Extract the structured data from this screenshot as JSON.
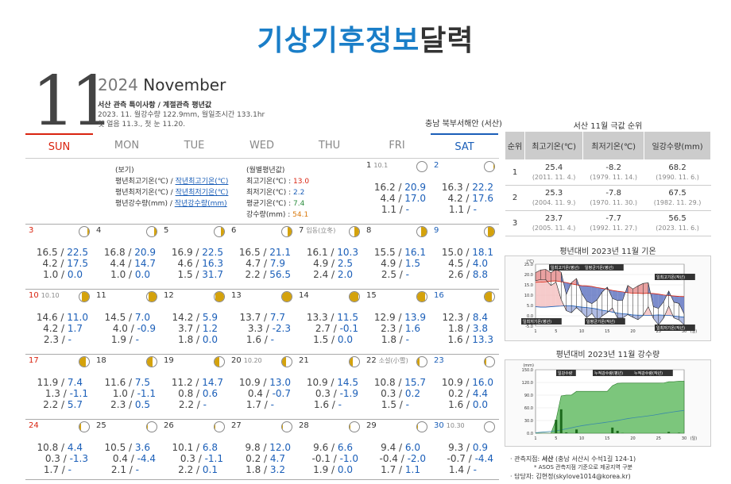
{
  "title_blue": "기상기후정보",
  "title_dark": "달력",
  "month_num": "11",
  "year": "2024",
  "month_name": "November",
  "info1": "서산 관측 특이사항 / 계절관측 평년값",
  "info2": "2023. 11. 월강수량 122.9mm, 월일조시간 133.1hr",
  "info3": "첫 얼음 11.3., 첫 눈 11.20.",
  "region": "충남 북부서해안 (서산)",
  "weekdays": [
    "SUN",
    "MON",
    "TUE",
    "WED",
    "THU",
    "FRI",
    "SAT"
  ],
  "legend": {
    "head": "(보기)",
    "l1a": "평년최고기온(℃) / ",
    "l1b": "작년최고기온(℃)",
    "l2a": "평년최저기온(℃) / ",
    "l2b": "작년최저기온(℃)",
    "l3a": "평년강수량(mm) / ",
    "l3b": "작년강수량(mm)"
  },
  "monthly": {
    "head": "(월별평년값)",
    "r1": "최고기온(℃) : ",
    "v1": "13.0",
    "r2": "최저기온(℃) : ",
    "v2": "2.2",
    "r3": "평균기온(℃) : ",
    "v3": "7.4",
    "r4": "강수량(mm) : ",
    "v4": "54.1"
  },
  "days": [
    {
      "d": "1",
      "note": "10.1",
      "phase": 0.02,
      "hi": "16.2",
      "hi2": "20.9",
      "lo": "4.4",
      "lo2": "17.0",
      "pr": "1.1",
      "pr2": "-"
    },
    {
      "d": "2",
      "note": "",
      "phase": 0.04,
      "hi": "16.3",
      "hi2": "22.2",
      "lo": "4.2",
      "lo2": "17.6",
      "pr": "1.1",
      "pr2": "-"
    },
    {
      "d": "3",
      "note": "",
      "phase": 0.08,
      "hi": "16.5",
      "hi2": "22.5",
      "lo": "4.2",
      "lo2": "17.5",
      "pr": "1.0",
      "pr2": "0.0"
    },
    {
      "d": "4",
      "note": "",
      "phase": 0.12,
      "hi": "16.8",
      "hi2": "20.9",
      "lo": "4.4",
      "lo2": "14.7",
      "pr": "1.0",
      "pr2": "0.0"
    },
    {
      "d": "5",
      "note": "",
      "phase": 0.16,
      "hi": "16.9",
      "hi2": "22.5",
      "lo": "4.6",
      "lo2": "16.3",
      "pr": "1.5",
      "pr2": "31.7"
    },
    {
      "d": "6",
      "note": "",
      "phase": 0.2,
      "hi": "16.5",
      "hi2": "21.1",
      "lo": "4.7",
      "lo2": "7.9",
      "pr": "2.2",
      "pr2": "56.5"
    },
    {
      "d": "7",
      "note": "입동(立冬)",
      "phase": 0.24,
      "hi": "16.1",
      "hi2": "10.3",
      "lo": "4.9",
      "lo2": "2.5",
      "pr": "2.4",
      "pr2": "2.0"
    },
    {
      "d": "8",
      "note": "",
      "phase": 0.28,
      "hi": "15.5",
      "hi2": "16.1",
      "lo": "4.9",
      "lo2": "1.5",
      "pr": "2.5",
      "pr2": "-"
    },
    {
      "d": "9",
      "note": "",
      "phase": 0.32,
      "hi": "15.0",
      "hi2": "18.1",
      "lo": "4.5",
      "lo2": "4.0",
      "pr": "2.6",
      "pr2": "8.8"
    },
    {
      "d": "10",
      "note": "10.10",
      "phase": 0.36,
      "hi": "14.6",
      "hi2": "11.0",
      "lo": "4.2",
      "lo2": "1.7",
      "pr": "2.3",
      "pr2": "-"
    },
    {
      "d": "11",
      "note": "",
      "phase": 0.4,
      "hi": "14.5",
      "hi2": "7.0",
      "lo": "4.0",
      "lo2": "-0.9",
      "pr": "1.9",
      "pr2": "-"
    },
    {
      "d": "12",
      "note": "",
      "phase": 0.44,
      "hi": "14.2",
      "hi2": "5.9",
      "lo": "3.7",
      "lo2": "1.2",
      "pr": "1.8",
      "pr2": "0.0"
    },
    {
      "d": "13",
      "note": "",
      "phase": 0.5,
      "hi": "13.7",
      "hi2": "7.7",
      "lo": "3.3",
      "lo2": "-2.3",
      "pr": "1.6",
      "pr2": "-"
    },
    {
      "d": "14",
      "note": "",
      "phase": 0.54,
      "hi": "13.3",
      "hi2": "11.5",
      "lo": "2.7",
      "lo2": "-0.1",
      "pr": "1.5",
      "pr2": "0.0"
    },
    {
      "d": "15",
      "note": "",
      "phase": 0.58,
      "hi": "12.9",
      "hi2": "13.9",
      "lo": "2.3",
      "lo2": "1.6",
      "pr": "1.8",
      "pr2": "-"
    },
    {
      "d": "16",
      "note": "",
      "phase": 0.62,
      "hi": "12.3",
      "hi2": "8.4",
      "lo": "1.8",
      "lo2": "3.8",
      "pr": "1.6",
      "pr2": "13.3"
    },
    {
      "d": "17",
      "note": "",
      "phase": 0.66,
      "hi": "11.9",
      "hi2": "7.4",
      "lo": "1.3",
      "lo2": "-1.1",
      "pr": "2.2",
      "pr2": "5.7"
    },
    {
      "d": "18",
      "note": "",
      "phase": 0.7,
      "hi": "11.6",
      "hi2": "7.5",
      "lo": "1.0",
      "lo2": "-1.1",
      "pr": "2.3",
      "pr2": "0.5"
    },
    {
      "d": "19",
      "note": "",
      "phase": 0.74,
      "hi": "11.2",
      "hi2": "14.7",
      "lo": "0.8",
      "lo2": "0.6",
      "pr": "2.2",
      "pr2": "-"
    },
    {
      "d": "20",
      "note": "10.20",
      "phase": 0.78,
      "hi": "10.9",
      "hi2": "13.0",
      "lo": "0.4",
      "lo2": "-0.7",
      "pr": "1.7",
      "pr2": "-"
    },
    {
      "d": "21",
      "note": "",
      "phase": 0.82,
      "hi": "10.9",
      "hi2": "14.5",
      "lo": "0.3",
      "lo2": "-1.9",
      "pr": "1.6",
      "pr2": "-"
    },
    {
      "d": "22",
      "note": "소설(小雪)",
      "phase": 0.86,
      "hi": "10.8",
      "hi2": "15.7",
      "lo": "0.3",
      "lo2": "0.2",
      "pr": "1.5",
      "pr2": "-"
    },
    {
      "d": "23",
      "note": "",
      "phase": 0.9,
      "hi": "10.9",
      "hi2": "16.0",
      "lo": "0.2",
      "lo2": "4.4",
      "pr": "1.6",
      "pr2": "0.0"
    },
    {
      "d": "24",
      "note": "",
      "phase": 0.93,
      "hi": "10.8",
      "hi2": "4.4",
      "lo": "0.3",
      "lo2": "-1.3",
      "pr": "1.7",
      "pr2": "-"
    },
    {
      "d": "25",
      "note": "",
      "phase": 0.95,
      "hi": "10.5",
      "hi2": "3.6",
      "lo": "0.4",
      "lo2": "-4.4",
      "pr": "2.1",
      "pr2": "-"
    },
    {
      "d": "26",
      "note": "",
      "phase": 0.97,
      "hi": "10.1",
      "hi2": "6.8",
      "lo": "0.3",
      "lo2": "-1.1",
      "pr": "2.2",
      "pr2": "0.1"
    },
    {
      "d": "27",
      "note": "",
      "phase": 0.98,
      "hi": "9.8",
      "hi2": "12.0",
      "lo": "0.2",
      "lo2": "4.7",
      "pr": "1.8",
      "pr2": "3.2"
    },
    {
      "d": "28",
      "note": "",
      "phase": 0.99,
      "hi": "9.6",
      "hi2": "6.6",
      "lo": "-0.1",
      "lo2": "-1.0",
      "pr": "1.9",
      "pr2": "0.0"
    },
    {
      "d": "29",
      "note": "",
      "phase": 0.995,
      "hi": "9.4",
      "hi2": "6.0",
      "lo": "-0.4",
      "lo2": "-2.0",
      "pr": "1.7",
      "pr2": "1.1"
    },
    {
      "d": "30",
      "note": "10.30",
      "phase": 0.0,
      "hi": "9.3",
      "hi2": "0.9",
      "lo": "-0.7",
      "lo2": "-4.4",
      "pr": "1.4",
      "pr2": "-"
    }
  ],
  "rank_title": "서산 11월 극값 순위",
  "rank_head": [
    "순위",
    "최고기온(℃)",
    "최저기온(℃)",
    "일강수량(mm)"
  ],
  "rank": [
    [
      "1",
      "25.4",
      "(2011. 11. 4.)",
      "-8.2",
      "(1979. 11. 14.)",
      "68.2",
      "(1990. 11. 6.)"
    ],
    [
      "2",
      "25.3",
      "(2004. 11. 9.)",
      "-7.8",
      "(1970. 11. 30.)",
      "67.5",
      "(1982. 11. 29.)"
    ],
    [
      "3",
      "23.7",
      "(2005. 11. 4.)",
      "-7.7",
      "(1992. 11. 27.)",
      "56.5",
      "(2023. 11. 6.)"
    ]
  ],
  "chart1_title": "평년대비 2023년 11월 기온",
  "chart2_title": "평년대비 2023년 11월 강수량",
  "chart_data": [
    {
      "type": "line",
      "title": "평년대비 2023년 11월 기온",
      "ylabel": "(℃)",
      "xlabel": "(일)",
      "ylim": [
        -5,
        25
      ],
      "yticks": [
        "25.0",
        "20.0",
        "15.0",
        "10.0",
        "5.0",
        "0.0",
        "-5.0"
      ],
      "xticks": [
        "1",
        "5",
        "10",
        "15",
        "20",
        "25",
        "30"
      ],
      "labels": [
        "일최고기온(평년)",
        "일평균기온(평년)",
        "일최고기온(작년)",
        "일최저기온(평년)",
        "일평균기온(작년)",
        "일최저기온(작년)"
      ],
      "x": [
        1,
        2,
        3,
        4,
        5,
        6,
        7,
        8,
        9,
        10,
        11,
        12,
        13,
        14,
        15,
        16,
        17,
        18,
        19,
        20,
        21,
        22,
        23,
        24,
        25,
        26,
        27,
        28,
        29,
        30
      ],
      "series": [
        {
          "name": "일최고기온(평년)",
          "values": [
            16.2,
            16.3,
            16.5,
            16.8,
            16.9,
            16.5,
            16.1,
            15.5,
            15.0,
            14.6,
            14.5,
            14.2,
            13.7,
            13.3,
            12.9,
            12.3,
            11.9,
            11.6,
            11.2,
            10.9,
            10.9,
            10.8,
            10.9,
            10.8,
            10.5,
            10.1,
            9.8,
            9.6,
            9.4,
            9.3
          ]
        },
        {
          "name": "일최저기온(평년)",
          "values": [
            4.4,
            4.2,
            4.2,
            4.4,
            4.6,
            4.7,
            4.9,
            4.9,
            4.5,
            4.2,
            4.0,
            3.7,
            3.3,
            2.7,
            2.3,
            1.8,
            1.3,
            1.0,
            0.8,
            0.4,
            0.3,
            0.3,
            0.2,
            0.3,
            0.4,
            0.3,
            0.2,
            -0.1,
            -0.4,
            -0.7
          ]
        },
        {
          "name": "일최고기온(작년)",
          "values": [
            20.9,
            22.2,
            22.5,
            20.9,
            22.5,
            21.1,
            10.3,
            16.1,
            18.1,
            11.0,
            7.0,
            5.9,
            7.7,
            11.5,
            13.9,
            8.4,
            7.4,
            7.5,
            14.7,
            13.0,
            14.5,
            15.7,
            16.0,
            4.4,
            3.6,
            6.8,
            12.0,
            6.6,
            6.0,
            0.9
          ]
        },
        {
          "name": "일최저기온(작년)",
          "values": [
            17.0,
            17.6,
            17.5,
            14.7,
            16.3,
            7.9,
            2.5,
            1.5,
            4.0,
            1.7,
            -0.9,
            1.2,
            -2.3,
            -0.1,
            1.6,
            3.8,
            -1.1,
            -1.1,
            0.6,
            -0.7,
            -1.9,
            0.2,
            4.4,
            -1.3,
            -4.4,
            -1.1,
            4.7,
            -1.0,
            -2.0,
            -4.4
          ]
        }
      ]
    },
    {
      "type": "area",
      "title": "평년대비 2023년 11월 강수량",
      "ylabel": "(mm)",
      "xlabel": "(일)",
      "ylim": [
        0,
        150
      ],
      "yticks": [
        "150.0",
        "120.0",
        "90.0",
        "60.0",
        "30.0",
        "0.0"
      ],
      "xticks": [
        "1",
        "5",
        "10",
        "15",
        "20",
        "25",
        "30"
      ],
      "labels": [
        "일강수량",
        "누적강수량(평년)",
        "누적강수량(작년)"
      ],
      "x": [
        1,
        2,
        3,
        4,
        5,
        6,
        7,
        8,
        9,
        10,
        11,
        12,
        13,
        14,
        15,
        16,
        17,
        18,
        19,
        20,
        21,
        22,
        23,
        24,
        25,
        26,
        27,
        28,
        29,
        30
      ],
      "series": [
        {
          "name": "일강수량",
          "values": [
            0,
            0,
            0,
            0,
            31.7,
            56.5,
            2.0,
            0,
            8.8,
            0,
            0,
            0,
            0,
            0,
            0,
            13.3,
            5.7,
            0.5,
            0,
            0,
            0,
            0,
            0,
            0,
            0,
            0.1,
            3.2,
            0,
            1.1,
            0
          ]
        }
      ]
    }
  ],
  "footer1a": "관측지점: ",
  "footer1b": "서산",
  "footer1c": " (충남 서산시 수석1길 124-1)",
  "footer2": "* ASOS 관측지점 기준으로 제공지역 구분",
  "footer3": "담당자: 김현정(skylove1014@korea.kr)"
}
